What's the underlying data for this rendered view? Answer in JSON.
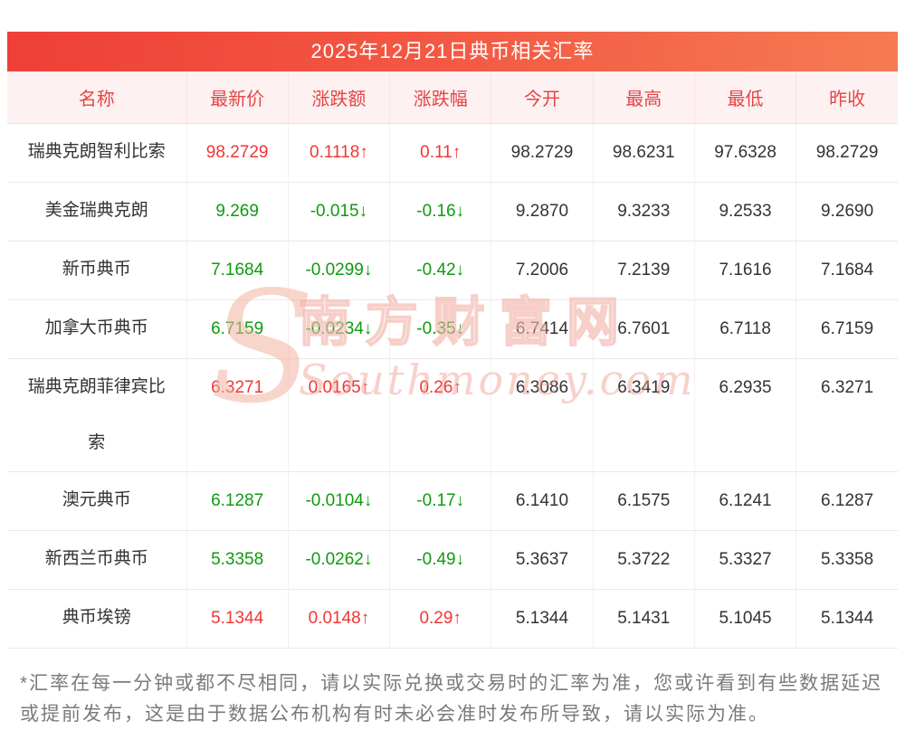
{
  "title": "2025年12月21日典币相关汇率",
  "table": {
    "headers": [
      "名称",
      "最新价",
      "涨跌额",
      "涨跌幅",
      "今开",
      "最高",
      "最低",
      "昨收"
    ],
    "rows": [
      {
        "name": "瑞典克朗智利比索",
        "price": "98.2729",
        "change": "0.1118↑",
        "pct": "0.11↑",
        "open": "98.2729",
        "high": "98.6231",
        "low": "97.6328",
        "prev": "98.2729",
        "trend": "up"
      },
      {
        "name": "美金瑞典克朗",
        "price": "9.269",
        "change": "-0.015↓",
        "pct": "-0.16↓",
        "open": "9.2870",
        "high": "9.3233",
        "low": "9.2533",
        "prev": "9.2690",
        "trend": "down"
      },
      {
        "name": "新币典币",
        "price": "7.1684",
        "change": "-0.0299↓",
        "pct": "-0.42↓",
        "open": "7.2006",
        "high": "7.2139",
        "low": "7.1616",
        "prev": "7.1684",
        "trend": "down"
      },
      {
        "name": "加拿大币典币",
        "price": "6.7159",
        "change": "-0.0234↓",
        "pct": "-0.35↓",
        "open": "6.7414",
        "high": "6.7601",
        "low": "6.7118",
        "prev": "6.7159",
        "trend": "down"
      },
      {
        "name": "瑞典克朗菲律宾比索",
        "price": "6.3271",
        "change": "0.0165↑",
        "pct": "0.26↑",
        "open": "6.3086",
        "high": "6.3419",
        "low": "6.2935",
        "prev": "6.3271",
        "trend": "up"
      },
      {
        "name": "澳元典币",
        "price": "6.1287",
        "change": "-0.0104↓",
        "pct": "-0.17↓",
        "open": "6.1410",
        "high": "6.1575",
        "low": "6.1241",
        "prev": "6.1287",
        "trend": "down"
      },
      {
        "name": "新西兰币典币",
        "price": "5.3358",
        "change": "-0.0262↓",
        "pct": "-0.49↓",
        "open": "5.3637",
        "high": "5.3722",
        "low": "5.3327",
        "prev": "5.3358",
        "trend": "down"
      },
      {
        "name": "典币埃镑",
        "price": "5.1344",
        "change": "0.0148↑",
        "pct": "0.29↑",
        "open": "5.1344",
        "high": "5.1431",
        "low": "5.1045",
        "prev": "5.1344",
        "trend": "up"
      }
    ]
  },
  "watermark": {
    "initial": "S",
    "brand": "南方财富网",
    "domain": "Southmoney.com"
  },
  "footer_note": "*汇率在每一分钟或都不尽相同，请以实际兑换或交易时的汇率为准，您或许看到有些数据延迟或提前发布，这是由于数据公布机构有时未必会准时发布所导致，请以实际为准。",
  "colors": {
    "up": "#f23535",
    "down": "#0f9b0f",
    "header_text": "#e64545",
    "header_bg": "#fdf1f1",
    "title_bg_start": "#ee3f38",
    "title_bg_end": "#f57b52"
  }
}
